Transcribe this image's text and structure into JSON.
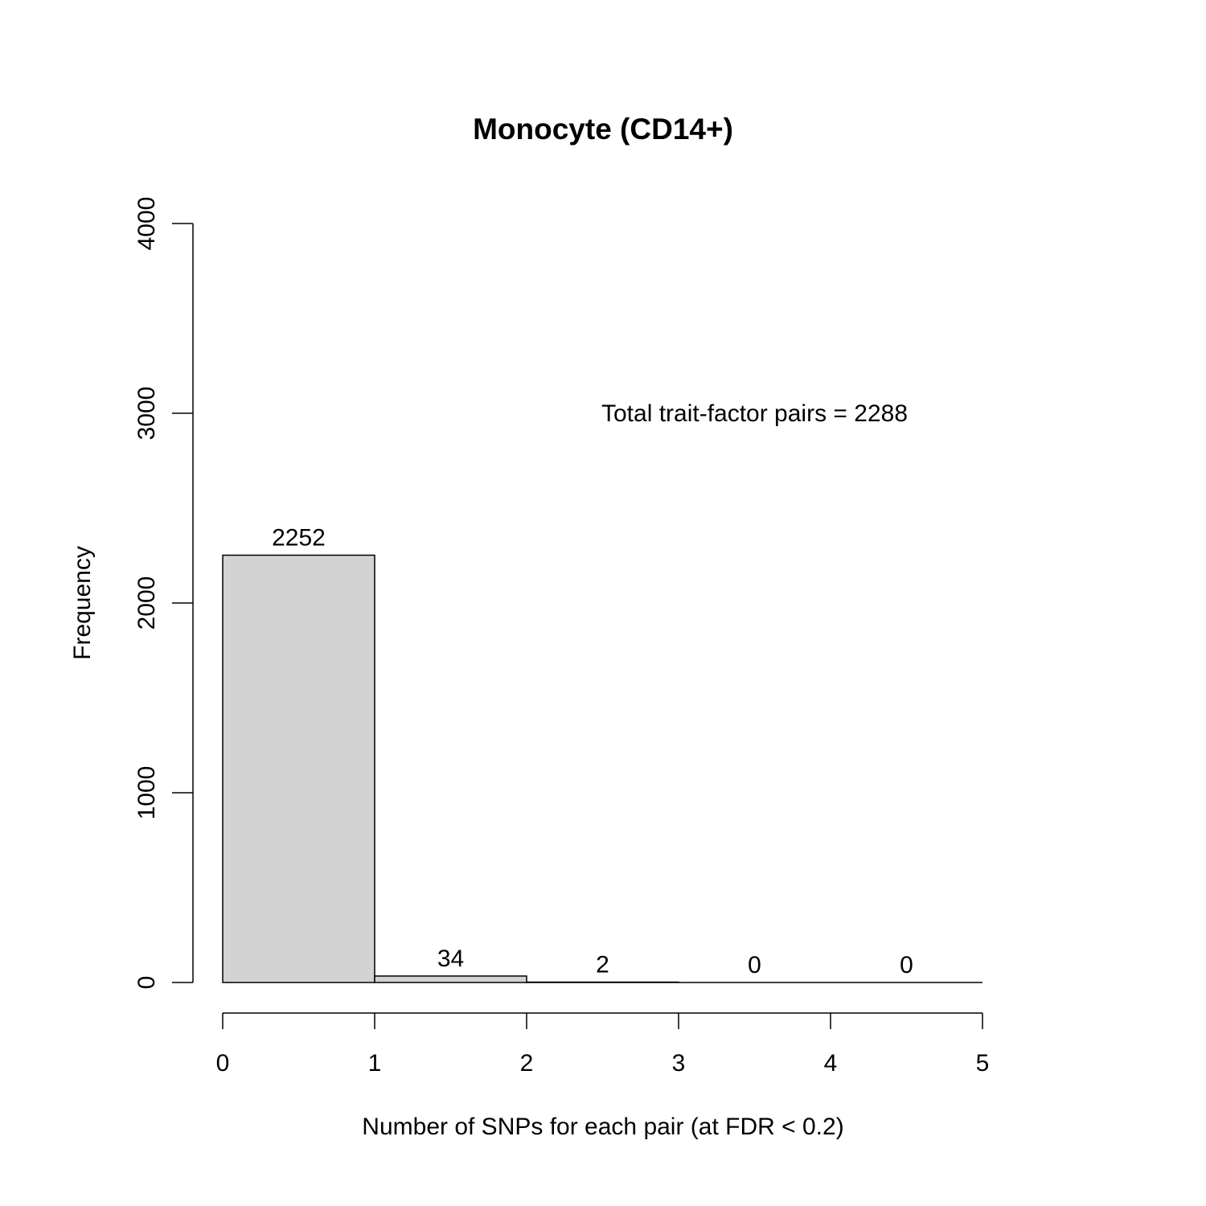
{
  "chart_data": {
    "type": "bar",
    "title": "Monocyte (CD14+)",
    "xlabel": "Number of SNPs for each pair (at FDR < 0.2)",
    "ylabel": "Frequency",
    "bins": [
      [
        0,
        1
      ],
      [
        1,
        2
      ],
      [
        2,
        3
      ],
      [
        3,
        4
      ],
      [
        4,
        5
      ]
    ],
    "values": [
      2252,
      34,
      2,
      0,
      0
    ],
    "bar_labels": [
      "2252",
      "34",
      "2",
      "0",
      "0"
    ],
    "xlim": [
      0,
      5
    ],
    "ylim": [
      0,
      4000
    ],
    "x_ticks": [
      0,
      1,
      2,
      3,
      4,
      5
    ],
    "y_ticks": [
      0,
      1000,
      2000,
      3000,
      4000
    ],
    "annotation": "Total trait-factor pairs = 2288",
    "annotation_at": {
      "x": 3.5,
      "y": 3000
    },
    "bar_fill": "#d3d3d3",
    "grid": false
  }
}
